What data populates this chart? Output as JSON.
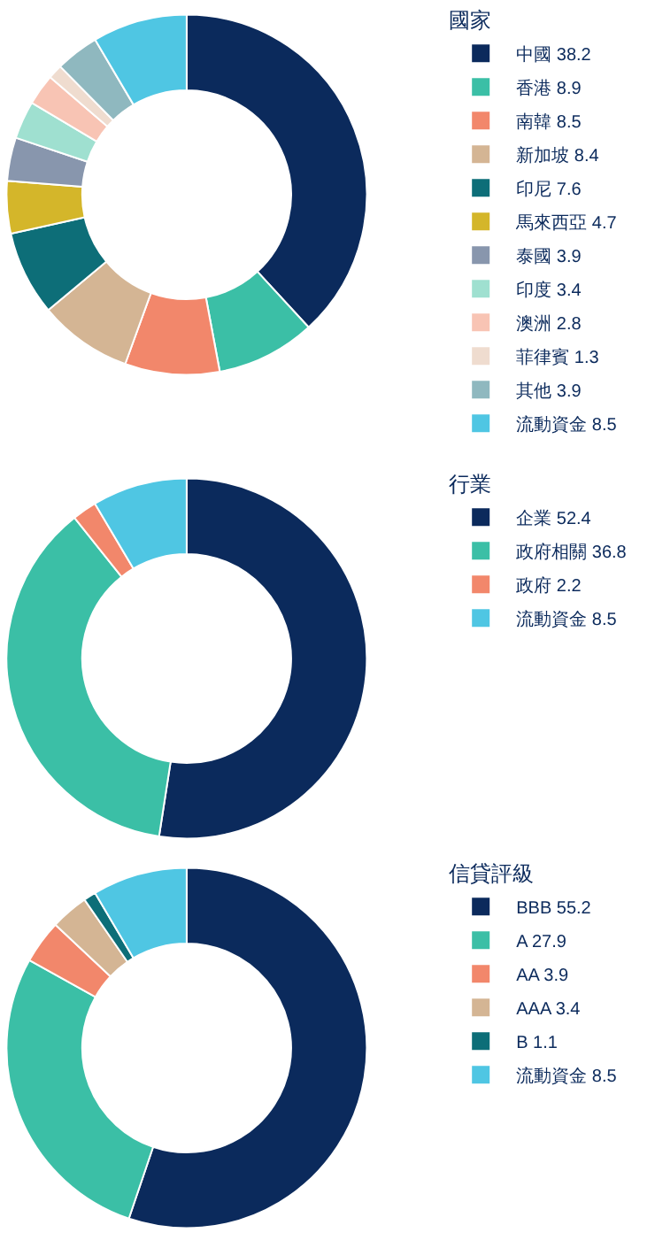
{
  "chart_data": [
    {
      "type": "donut",
      "legend_title": "國家",
      "categories": [
        "中國 38.2",
        "香港 8.9",
        "南韓 8.5",
        "新加坡 8.4",
        "印尼 7.6",
        "馬來西亞 4.7",
        "泰國 3.9",
        "印度 3.4",
        "澳洲 2.8",
        "菲律賓 1.3",
        "其他 3.9",
        "流動資金 8.5"
      ],
      "values": [
        38.2,
        8.9,
        8.5,
        8.4,
        7.6,
        4.7,
        3.9,
        3.4,
        2.8,
        1.3,
        3.9,
        8.5
      ],
      "colors": [
        "#0b2a5c",
        "#3bbfa6",
        "#f2876b",
        "#d4b594",
        "#0d6e78",
        "#d4b62a",
        "#8896ad",
        "#9fe0d0",
        "#f8c4b4",
        "#efdccf",
        "#8fb8bf",
        "#4fc6e3"
      ],
      "legend": "right"
    },
    {
      "type": "donut",
      "legend_title": "行業",
      "categories": [
        "企業 52.4",
        "政府相關 36.8",
        "政府 2.2",
        "流動資金 8.5"
      ],
      "values": [
        52.4,
        36.8,
        2.2,
        8.5
      ],
      "colors": [
        "#0b2a5c",
        "#3bbfa6",
        "#f2876b",
        "#4fc6e3"
      ],
      "legend": "right"
    },
    {
      "type": "donut",
      "legend_title": "信貸評級",
      "categories": [
        "BBB 55.2",
        "A 27.9",
        "AA 3.9",
        "AAA 3.4",
        "B 1.1",
        "流動資金 8.5"
      ],
      "values": [
        55.2,
        27.9,
        3.9,
        3.4,
        1.1,
        8.5
      ],
      "colors": [
        "#0b2a5c",
        "#3bbfa6",
        "#f2876b",
        "#d4b594",
        "#0d6e78",
        "#4fc6e3"
      ],
      "legend": "right"
    }
  ]
}
